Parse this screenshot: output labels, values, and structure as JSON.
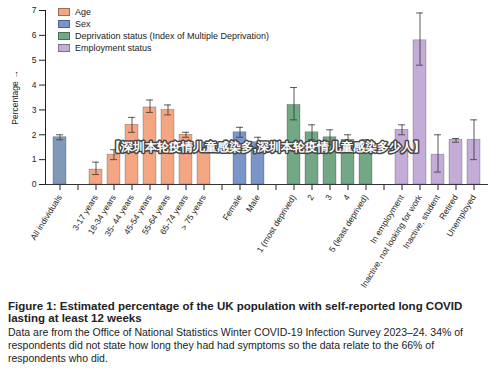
{
  "chart_data": {
    "type": "bar",
    "title": "Figure 1: Estimated percentage of the UK population with self-reported long COVID lasting at least 12 weeks",
    "caption": "Data are from the Office of National Statistics Winter COVID-19 Infection Survey 2023–24. 34% of respondents did not state how long they had had symptoms so the data relate to the 66% of respondents who did.",
    "annotation": "【深圳本轮疫情儿童感染多,深圳本轮疫情儿童感染多少人】",
    "y_label": "Percentage",
    "categories": [
      "All individuals",
      null,
      "3-17 years",
      "18-34 years",
      "35- 44 years",
      "45-54 years",
      "55-64 years",
      "65-74 years",
      "> 75 years",
      null,
      "Female",
      "Male",
      null,
      "1 (most deprived)",
      "2",
      "3",
      "4",
      "5 (least deprived)",
      null,
      "In employment",
      "Inactive, not looking for work",
      "Inactive, student",
      "Retired",
      "Unemployed"
    ],
    "values": [
      1.9,
      null,
      0.6,
      1.2,
      2.4,
      3.1,
      3.0,
      2.0,
      1.5,
      null,
      2.1,
      1.7,
      null,
      3.2,
      2.1,
      1.9,
      1.8,
      1.6,
      null,
      2.2,
      5.8,
      1.2,
      1.8,
      1.8
    ],
    "error_low": [
      1.8,
      null,
      0.4,
      1.0,
      2.1,
      2.9,
      2.8,
      1.9,
      1.3,
      null,
      1.9,
      1.5,
      null,
      2.6,
      1.8,
      1.6,
      1.6,
      1.4,
      null,
      2.0,
      4.8,
      0.5,
      1.7,
      1.0
    ],
    "error_high": [
      2.0,
      null,
      0.9,
      1.4,
      2.7,
      3.4,
      3.2,
      2.1,
      1.7,
      null,
      2.3,
      1.9,
      null,
      3.9,
      2.4,
      2.2,
      2.0,
      1.8,
      null,
      2.4,
      6.9,
      2.0,
      1.85,
      2.6
    ],
    "colors": [
      "#8099b8",
      null,
      "#f4a582",
      "#f4a582",
      "#f4a582",
      "#f4a582",
      "#f4a582",
      "#f4a582",
      "#f4a582",
      null,
      "#7a96c9",
      "#7a96c9",
      null,
      "#72a886",
      "#72a886",
      "#72a886",
      "#72a886",
      "#72a886",
      null,
      "#c4acd8",
      "#c4acd8",
      "#c4acd8",
      "#c4acd8",
      "#c4acd8"
    ],
    "legend": "top-left",
    "legend_entries": [
      {
        "name": "Age",
        "color": "#f4a582"
      },
      {
        "name": "Sex",
        "color": "#7a96c9"
      },
      {
        "name": "Deprivation status (Index of Multiple Deprivation)",
        "color": "#72a886"
      },
      {
        "name": "Employment status",
        "color": "#c4acd8"
      }
    ],
    "ylim": [
      0,
      7
    ],
    "yticks": [
      0,
      1,
      2,
      3,
      4,
      5,
      6,
      7
    ],
    "grid": false
  }
}
